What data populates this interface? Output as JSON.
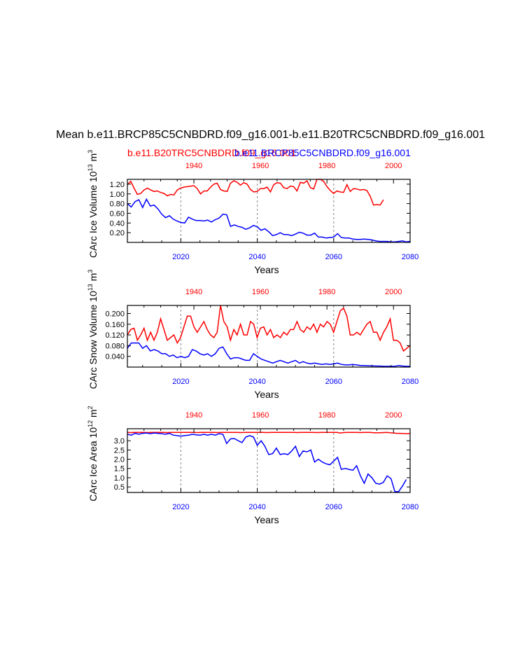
{
  "figure": {
    "title": "Mean b.e11.BRCP85C5CNBDRD.f09_g16.001-b.e11.B20TRC5CNBDRD.f09_g16.001",
    "subtitle_red": "b.e11.B20TRC5CNBDRD.f09_g16.001",
    "subtitle_blue": "b.e11.BRCP85C5CNBDRD.f09_g16.001",
    "colors": {
      "historical": "#ff0000",
      "future": "#0000ff",
      "grid": "#999999"
    }
  },
  "chart_data": [
    {
      "type": "line",
      "ylabel": "CArc Ice Volume 10",
      "ylabel_exp": "13",
      "ylabel_unit": "m",
      "ylabel_unit_exp": "3",
      "xlabel": "Years",
      "ylim": [
        0,
        1.3
      ],
      "yticks": [
        0.2,
        0.4,
        0.6,
        0.8,
        1.0,
        1.2
      ],
      "ytick_labels": [
        "0.20",
        "0.40",
        "0.60",
        "0.80",
        "1.00",
        "1.20"
      ],
      "x_bottom": {
        "range": [
          2006,
          2080
        ],
        "ticks": [
          2020,
          2040,
          2060,
          2080
        ],
        "labels": [
          "2020",
          "2040",
          "2060",
          "2080"
        ]
      },
      "x_top": {
        "range": [
          1920,
          2005
        ],
        "ticks": [
          1940,
          1960,
          1980,
          2000
        ],
        "labels": [
          "1940",
          "1960",
          "1980",
          "2000"
        ]
      },
      "series": [
        {
          "name": "b.e11.B20TRC5CNBDRD.f09_g16.001",
          "axis": "top",
          "color": "#ff0000",
          "x_start": 1920,
          "values": [
            1.19,
            1.26,
            1.12,
            0.99,
            1.01,
            1.08,
            1.12,
            1.08,
            1.05,
            1.06,
            1.03,
            1.01,
            0.96,
            0.99,
            0.98,
            1.08,
            1.12,
            1.14,
            1.15,
            1.16,
            1.17,
            1.11,
            1.0,
            1.06,
            1.06,
            1.14,
            1.2,
            1.22,
            1.09,
            1.06,
            1.05,
            1.22,
            1.27,
            1.24,
            1.18,
            1.23,
            1.2,
            1.09,
            1.04,
            1.05,
            1.11,
            1.11,
            1.14,
            1.04,
            1.19,
            1.23,
            1.22,
            1.13,
            1.11,
            1.16,
            1.15,
            1.06,
            1.24,
            1.22,
            1.27,
            1.13,
            1.1,
            1.3,
            1.31,
            1.26,
            1.15,
            1.07,
            1.01,
            1.06,
            1.04,
            1.03,
            1.19,
            1.05,
            1.11,
            1.1,
            1.08,
            1.09,
            1.07,
            0.95,
            0.77,
            0.78,
            0.77,
            0.88
          ]
        },
        {
          "name": "b.e11.BRCP85C5CNBDRD.f09_g16.001",
          "axis": "bottom",
          "color": "#0000ff",
          "x_start": 2006,
          "values": [
            0.8,
            0.73,
            0.84,
            0.88,
            0.72,
            0.89,
            0.75,
            0.77,
            0.69,
            0.58,
            0.51,
            0.55,
            0.48,
            0.44,
            0.41,
            0.4,
            0.52,
            0.48,
            0.45,
            0.45,
            0.44,
            0.46,
            0.42,
            0.47,
            0.5,
            0.58,
            0.57,
            0.33,
            0.36,
            0.33,
            0.31,
            0.27,
            0.3,
            0.35,
            0.32,
            0.25,
            0.28,
            0.22,
            0.14,
            0.16,
            0.2,
            0.16,
            0.16,
            0.14,
            0.17,
            0.21,
            0.19,
            0.15,
            0.15,
            0.19,
            0.11,
            0.11,
            0.09,
            0.1,
            0.11,
            0.18,
            0.1,
            0.09,
            0.09,
            0.07,
            0.06,
            0.06,
            0.07,
            0.06,
            0.05,
            0.03,
            0.02,
            0.02,
            0.02,
            0.01,
            0.01,
            0.02,
            0.03,
            0.01,
            0.02
          ]
        }
      ]
    },
    {
      "type": "line",
      "ylabel": "CArc Snow Volume 10",
      "ylabel_exp": "13",
      "ylabel_unit": "m",
      "ylabel_unit_exp": "3",
      "xlabel": "Years",
      "ylim": [
        0,
        0.23
      ],
      "yticks": [
        0.04,
        0.08,
        0.12,
        0.16,
        0.2
      ],
      "ytick_labels": [
        "0.040",
        "0.080",
        "0.120",
        "0.160",
        "0.200"
      ],
      "x_bottom": {
        "range": [
          2006,
          2080
        ],
        "ticks": [
          2020,
          2040,
          2060,
          2080
        ],
        "labels": [
          "2020",
          "2040",
          "2060",
          "2080"
        ]
      },
      "x_top": {
        "range": [
          1920,
          2005
        ],
        "ticks": [
          1940,
          1960,
          1980,
          2000
        ],
        "labels": [
          "1940",
          "1960",
          "1980",
          "2000"
        ]
      },
      "series": [
        {
          "name": "b.e11.B20TRC5CNBDRD.f09_g16.001",
          "axis": "top",
          "color": "#ff0000",
          "x_start": 1920,
          "values": [
            0.12,
            0.14,
            0.145,
            0.1,
            0.12,
            0.145,
            0.1,
            0.13,
            0.1,
            0.13,
            0.18,
            0.14,
            0.1,
            0.11,
            0.12,
            0.09,
            0.11,
            0.15,
            0.19,
            0.19,
            0.15,
            0.13,
            0.15,
            0.17,
            0.14,
            0.12,
            0.11,
            0.13,
            0.23,
            0.17,
            0.15,
            0.1,
            0.14,
            0.12,
            0.16,
            0.12,
            0.12,
            0.17,
            0.16,
            0.11,
            0.145,
            0.15,
            0.12,
            0.14,
            0.11,
            0.12,
            0.11,
            0.13,
            0.12,
            0.14,
            0.14,
            0.17,
            0.14,
            0.13,
            0.15,
            0.14,
            0.16,
            0.13,
            0.16,
            0.15,
            0.17,
            0.16,
            0.13,
            0.17,
            0.21,
            0.22,
            0.19,
            0.12,
            0.12,
            0.13,
            0.12,
            0.14,
            0.16,
            0.17,
            0.13,
            0.13,
            0.1,
            0.13,
            0.15,
            0.18,
            0.1,
            0.1,
            0.09,
            0.06,
            0.07,
            0.08,
            0.1
          ]
        },
        {
          "name": "b.e11.BRCP85C5CNBDRD.f09_g16.001",
          "axis": "bottom",
          "color": "#0000ff",
          "x_start": 2006,
          "values": [
            0.07,
            0.09,
            0.09,
            0.09,
            0.07,
            0.08,
            0.06,
            0.065,
            0.06,
            0.05,
            0.05,
            0.04,
            0.045,
            0.035,
            0.04,
            0.035,
            0.04,
            0.065,
            0.06,
            0.05,
            0.045,
            0.05,
            0.04,
            0.05,
            0.07,
            0.075,
            0.05,
            0.03,
            0.035,
            0.035,
            0.03,
            0.025,
            0.025,
            0.05,
            0.04,
            0.03,
            0.025,
            0.02,
            0.015,
            0.02,
            0.025,
            0.02,
            0.015,
            0.02,
            0.025,
            0.015,
            0.02,
            0.015,
            0.012,
            0.015,
            0.012,
            0.01,
            0.012,
            0.01,
            0.012,
            0.015,
            0.01,
            0.008,
            0.008,
            0.01,
            0.008,
            0.006,
            0.006,
            0.005,
            0.005,
            0.004,
            0.004,
            0.003,
            0.003,
            0.003,
            0.003,
            0.006,
            0.004,
            0.003,
            0.003
          ]
        }
      ]
    },
    {
      "type": "line",
      "ylabel": "CArc Ice Area 10",
      "ylabel_exp": "12",
      "ylabel_unit": "m",
      "ylabel_unit_exp": "2",
      "xlabel": "Years",
      "ylim": [
        0.2,
        3.65
      ],
      "yticks": [
        0.5,
        1.0,
        1.5,
        2.0,
        2.5,
        3.0
      ],
      "ytick_labels": [
        "0.5",
        "1.0",
        "1.5",
        "2.0",
        "2.5",
        "3.0"
      ],
      "x_bottom": {
        "range": [
          2006,
          2080
        ],
        "ticks": [
          2020,
          2040,
          2060,
          2080
        ],
        "labels": [
          "2020",
          "2040",
          "2060",
          "2080"
        ]
      },
      "x_top": {
        "range": [
          1920,
          2005
        ],
        "ticks": [
          1940,
          1960,
          1980,
          2000
        ],
        "labels": [
          "1940",
          "1960",
          "1980",
          "2000"
        ]
      },
      "series": [
        {
          "name": "b.e11.B20TRC5CNBDRD.f09_g16.001",
          "axis": "top",
          "color": "#ff0000",
          "x_start": 1920,
          "values": [
            3.45,
            3.44,
            3.45,
            3.45,
            3.45,
            3.45,
            3.44,
            3.45,
            3.45,
            3.45,
            3.45,
            3.45,
            3.44,
            3.45,
            3.45,
            3.45,
            3.45,
            3.45,
            3.45,
            3.45,
            3.45,
            3.44,
            3.45,
            3.45,
            3.45,
            3.45,
            3.45,
            3.44,
            3.45,
            3.45,
            3.45,
            3.45,
            3.45,
            3.45,
            3.44,
            3.45,
            3.45,
            3.45,
            3.45,
            3.45,
            3.45,
            3.45,
            3.44,
            3.45,
            3.45,
            3.45,
            3.45,
            3.45,
            3.45,
            3.45,
            3.45,
            3.44,
            3.45,
            3.45,
            3.45,
            3.45,
            3.45,
            3.44,
            3.45,
            3.45,
            3.45,
            3.45,
            3.45,
            3.45,
            3.42,
            3.44,
            3.45,
            3.45,
            3.45,
            3.45,
            3.44,
            3.45,
            3.45,
            3.45,
            3.43,
            3.43,
            3.43,
            3.44,
            3.45,
            3.43,
            3.42,
            3.4,
            3.4,
            3.39,
            3.38,
            3.4,
            3.44
          ]
        },
        {
          "name": "b.e11.BRCP85C5CNBDRD.f09_g16.001",
          "axis": "bottom",
          "color": "#0000ff",
          "x_start": 2006,
          "values": [
            3.35,
            3.3,
            3.4,
            3.35,
            3.4,
            3.42,
            3.38,
            3.42,
            3.4,
            3.38,
            3.35,
            3.4,
            3.3,
            3.28,
            3.25,
            3.28,
            3.3,
            3.35,
            3.32,
            3.3,
            3.35,
            3.3,
            3.35,
            3.3,
            3.38,
            3.35,
            2.85,
            3.1,
            3.12,
            3.0,
            2.9,
            3.2,
            3.28,
            3.2,
            2.75,
            3.0,
            2.7,
            2.25,
            2.3,
            2.6,
            2.25,
            2.3,
            2.25,
            2.45,
            2.7,
            2.15,
            2.45,
            2.4,
            2.5,
            1.85,
            2.0,
            1.85,
            1.75,
            1.7,
            1.9,
            2.1,
            1.45,
            1.5,
            1.45,
            1.4,
            1.65,
            1.1,
            0.7,
            1.2,
            1.0,
            0.7,
            0.65,
            0.75,
            1.1,
            0.95,
            0.25,
            0.25,
            0.55,
            0.9
          ]
        }
      ]
    }
  ]
}
